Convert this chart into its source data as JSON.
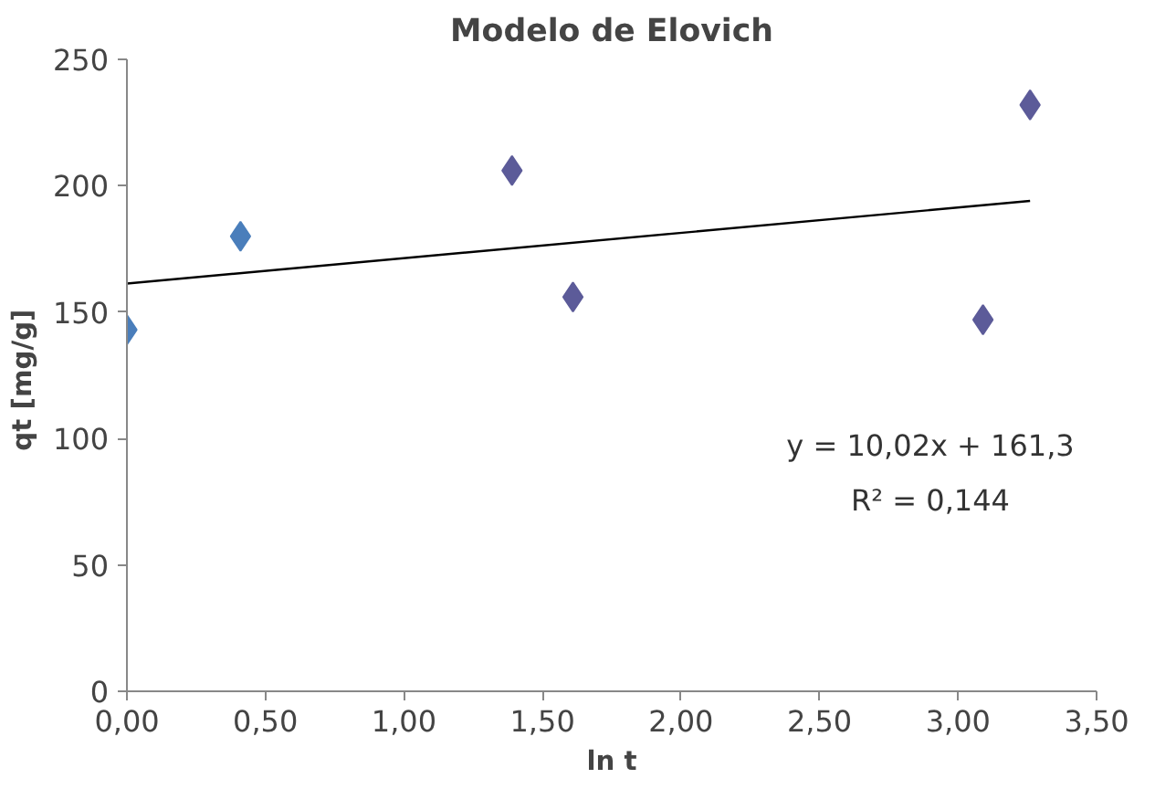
{
  "chart_data": {
    "type": "scatter",
    "title": "Modelo de Elovich",
    "xlabel": "ln t",
    "ylabel": "qt  [mg/g]",
    "grid": false,
    "xlim": [
      0,
      3.5
    ],
    "ylim": [
      0,
      250
    ],
    "xticks": [
      {
        "value": 0,
        "label": "0,00"
      },
      {
        "value": 0.5,
        "label": "0,50"
      },
      {
        "value": 1,
        "label": "1,00"
      },
      {
        "value": 1.5,
        "label": "1,50"
      },
      {
        "value": 2,
        "label": "2,00"
      },
      {
        "value": 2.5,
        "label": "2,50"
      },
      {
        "value": 3,
        "label": "3,00"
      },
      {
        "value": 3.5,
        "label": "3,50"
      }
    ],
    "yticks": [
      0,
      50,
      100,
      150,
      200,
      250
    ],
    "annotations": [
      "y = 10,02x + 161,3",
      "R² = 0,144"
    ],
    "series": [
      {
        "marker": "diamond",
        "x": [
          0,
          0.41,
          1.39,
          1.61,
          3.09,
          3.26
        ],
        "values": [
          143,
          180,
          206,
          156,
          147,
          232
        ],
        "colors": [
          "#4a7ebb",
          "#4a7ebb",
          "#5c5b99",
          "#5c5b99",
          "#5c5b99",
          "#5c5b99"
        ]
      },
      {
        "type": "line",
        "x": [
          0,
          3.26
        ],
        "values": [
          161.3,
          194
        ],
        "color": "#000000",
        "marker": "none"
      }
    ]
  }
}
